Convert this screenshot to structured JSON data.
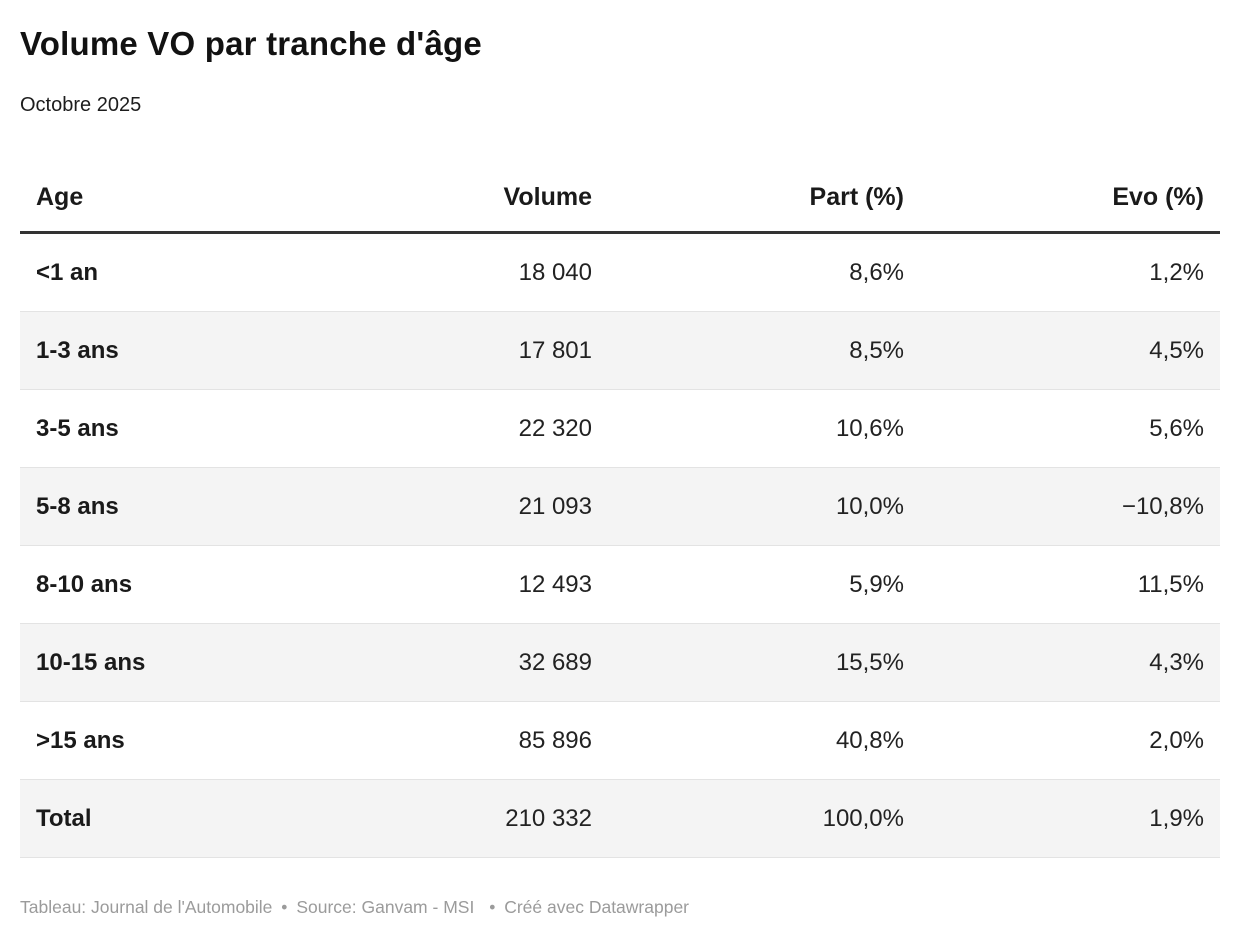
{
  "header": {
    "title": "Volume VO par tranche d'âge",
    "subtitle": "Octobre 2025"
  },
  "table": {
    "columns": [
      "Age",
      "Volume",
      "Part (%)",
      "Evo (%)"
    ],
    "rows": [
      {
        "age": "<1 an",
        "volume": "18 040",
        "part": "8,6%",
        "evo": "1,2%"
      },
      {
        "age": "1-3 ans",
        "volume": "17 801",
        "part": "8,5%",
        "evo": "4,5%"
      },
      {
        "age": "3-5 ans",
        "volume": "22 320",
        "part": "10,6%",
        "evo": "5,6%"
      },
      {
        "age": "5-8 ans",
        "volume": "21 093",
        "part": "10,0%",
        "evo": "−10,8%"
      },
      {
        "age": "8-10 ans",
        "volume": "12 493",
        "part": "5,9%",
        "evo": "11,5%"
      },
      {
        "age": "10-15 ans",
        "volume": "32 689",
        "part": "15,5%",
        "evo": "4,3%"
      },
      {
        "age": ">15 ans",
        "volume": "85 896",
        "part": "40,8%",
        "evo": "2,0%"
      },
      {
        "age": "Total",
        "volume": "210 332",
        "part": "100,0%",
        "evo": "1,9%"
      }
    ]
  },
  "footer": {
    "table_label": "Tableau:",
    "table_credit": "Journal de l'Automobile",
    "separator": "•",
    "source_label": "Source:",
    "source_credit": "Ganvam - MSI",
    "created_with": "Créé avec Datawrapper"
  },
  "colors": {
    "title_text": "#121212",
    "body_text": "#222222",
    "header_rule": "#333333",
    "row_stripe": "#f4f4f4",
    "row_divider": "#e3e3e3",
    "footer_text": "#9b9b9b"
  },
  "chart_data": {
    "type": "table",
    "title": "Volume VO par tranche d'âge",
    "subtitle": "Octobre 2025",
    "columns": [
      "Age",
      "Volume",
      "Part (%)",
      "Evo (%)"
    ],
    "rows": [
      [
        "<1 an",
        18040,
        8.6,
        1.2
      ],
      [
        "1-3 ans",
        17801,
        8.5,
        4.5
      ],
      [
        "3-5 ans",
        22320,
        10.6,
        5.6
      ],
      [
        "5-8 ans",
        21093,
        10.0,
        -10.8
      ],
      [
        "8-10 ans",
        12493,
        5.9,
        11.5
      ],
      [
        "10-15 ans",
        32689,
        15.5,
        4.3
      ],
      [
        ">15 ans",
        85896,
        40.8,
        2.0
      ],
      [
        "Total",
        210332,
        100.0,
        1.9
      ]
    ],
    "layout": {
      "striped_rows": true,
      "numeric_columns_right_aligned": true,
      "decimal_separator": ",",
      "thousands_separator": " "
    }
  }
}
